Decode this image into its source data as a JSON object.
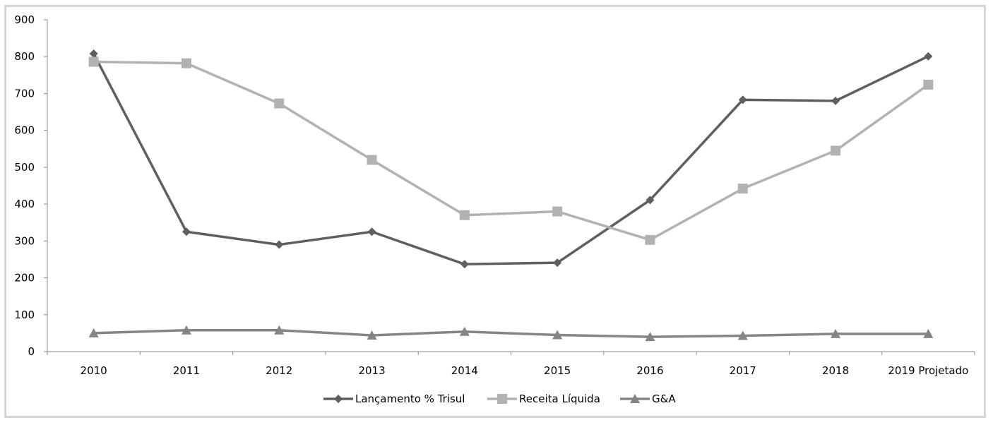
{
  "chart_data": {
    "type": "line",
    "title": "",
    "xlabel": "",
    "ylabel": "",
    "categories": [
      "2010",
      "2011",
      "2012",
      "2013",
      "2014",
      "2015",
      "2016",
      "2017",
      "2018",
      "2019 Projetado"
    ],
    "ylim": [
      0,
      900
    ],
    "yticks": [
      0,
      100,
      200,
      300,
      400,
      500,
      600,
      700,
      800,
      900
    ],
    "grid": false,
    "legend_position": "bottom",
    "series": [
      {
        "name": "Lançamento % Trisul",
        "marker": "diamond",
        "color": "#5f5f5f",
        "values": [
          808,
          325,
          290,
          325,
          237,
          241,
          411,
          683,
          680,
          801
        ]
      },
      {
        "name": "Receita Líquida",
        "marker": "square",
        "color": "#b2b2b2",
        "values": [
          786,
          782,
          673,
          520,
          370,
          380,
          303,
          442,
          545,
          724
        ]
      },
      {
        "name": "G&A",
        "marker": "triangle",
        "color": "#858585",
        "values": [
          50,
          58,
          58,
          44,
          54,
          45,
          40,
          43,
          48,
          48
        ]
      }
    ]
  }
}
